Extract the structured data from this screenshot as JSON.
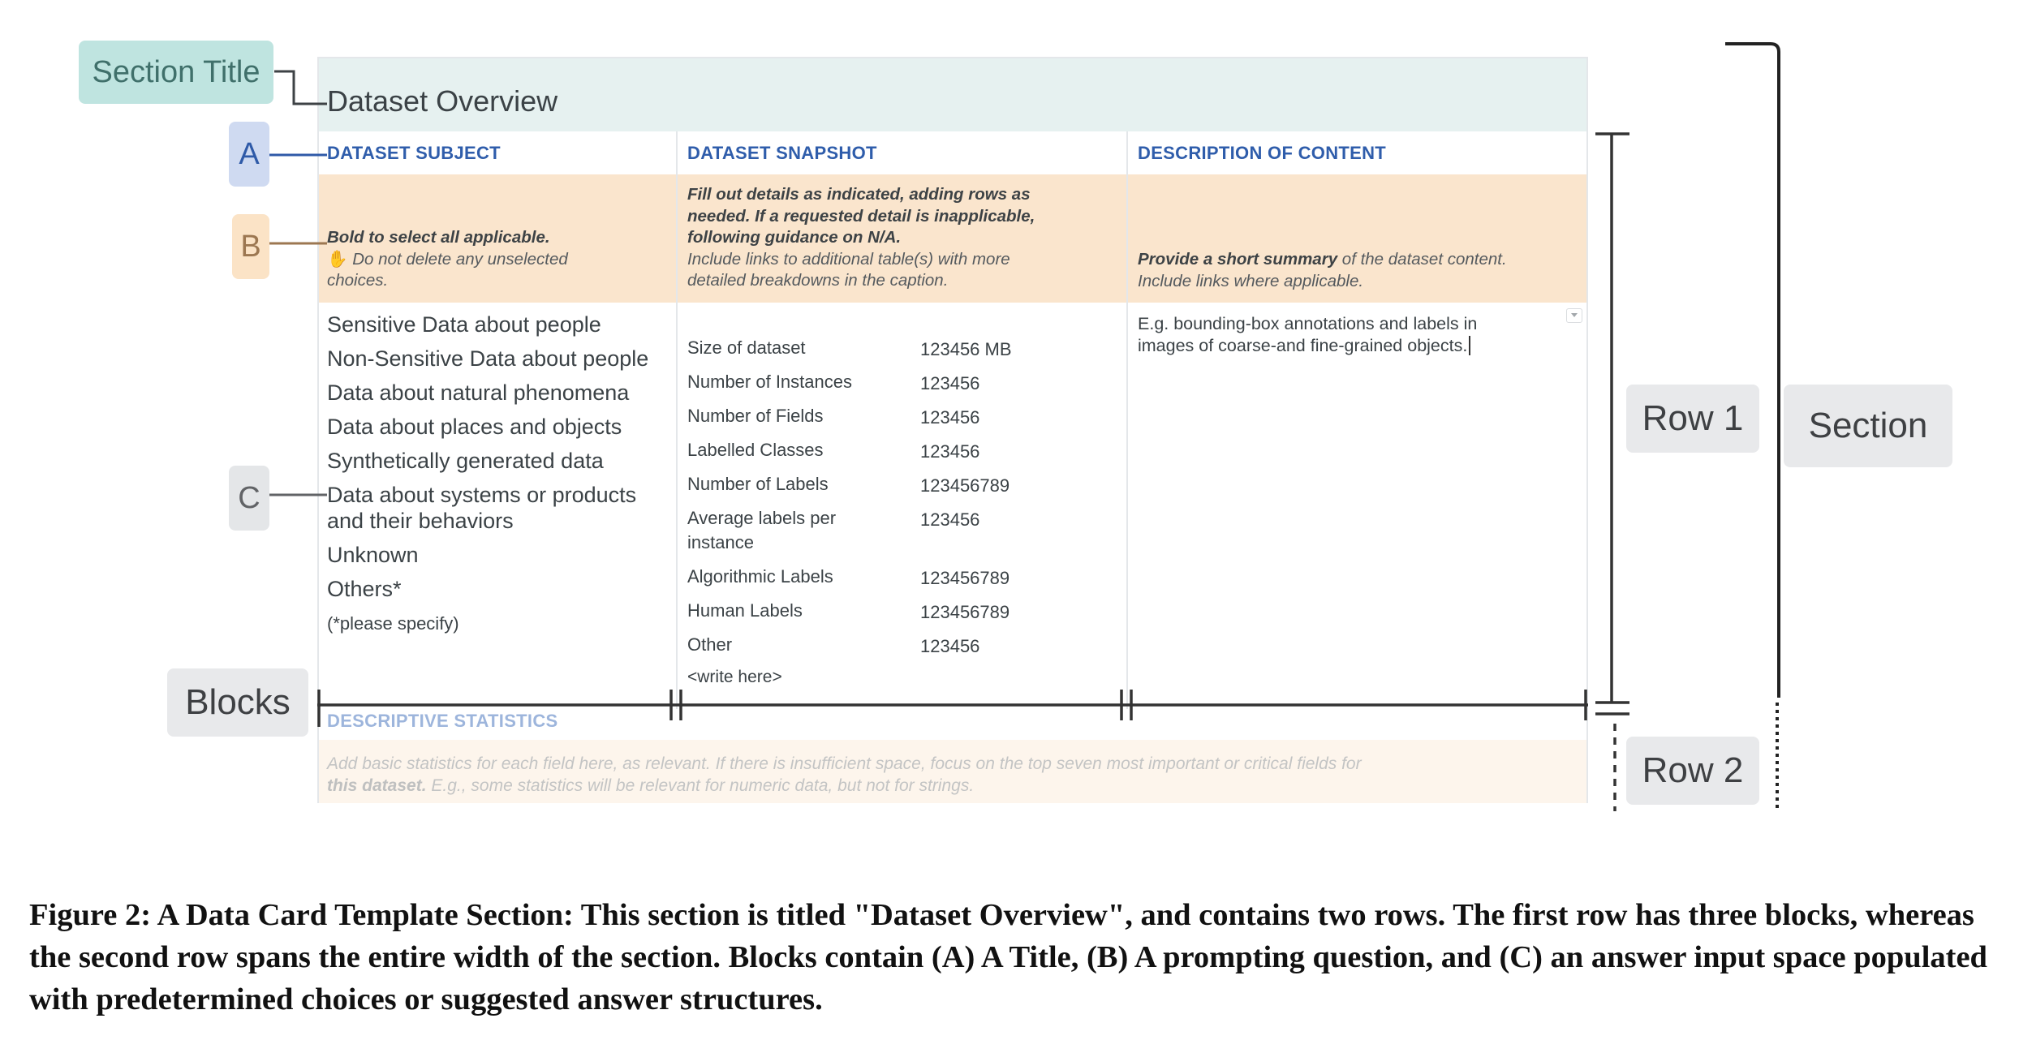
{
  "card": {
    "title": "Dataset Overview",
    "headers": [
      "DATASET SUBJECT",
      "DATASET SNAPSHOT",
      "DESCRIPTION OF CONTENT"
    ],
    "prompts": {
      "subject_bold": "Bold to select all applicable.",
      "subject_icon": "hand-icon",
      "subject_rest_1": "Do not delete any unselected",
      "subject_rest_2": "choices.",
      "snapshot_1": "Fill out details as indicated, adding rows as",
      "snapshot_2": "needed. If a requested detail is inapplicable,",
      "snapshot_3": "following guidance on N/A.",
      "snapshot_4": "Include links to additional table(s) with more",
      "snapshot_5": "detailed breakdowns in the caption.",
      "desc_bold": "Provide a short summary",
      "desc_rest": " of the dataset content.",
      "desc_2": "Include links where applicable."
    },
    "subject_choices": [
      "Sensitive Data about people",
      "Non-Sensitive Data about people",
      "Data about natural phenomena",
      "Data about places and objects",
      "Synthetically generated data",
      "Data about systems or products",
      "and their behaviors",
      "Unknown",
      "Others*"
    ],
    "subject_note": "(*please specify)",
    "snapshot_rows": [
      {
        "label": "Size of dataset",
        "value": "123456 MB"
      },
      {
        "label": "Number of Instances",
        "value": "123456"
      },
      {
        "label": "Number of Fields",
        "value": "123456"
      },
      {
        "label": "Labelled Classes",
        "value": "123456"
      },
      {
        "label": "Number of Labels",
        "value": "123456789"
      },
      {
        "label": "Average labels per",
        "value": "123456"
      },
      {
        "label": "instance",
        "value": ""
      },
      {
        "label": "Algorithmic Labels",
        "value": "123456789"
      },
      {
        "label": "Human Labels",
        "value": "123456789"
      },
      {
        "label": "Other",
        "value": "123456"
      }
    ],
    "snapshot_write": "<write here>",
    "description_1": "E.g. bounding-box annotations and labels in",
    "description_2": "images of coarse-and fine-grained objects.",
    "row2_title": "DESCRIPTIVE STATISTICS",
    "row2_prompt_1": "Add basic statistics for each field here, as relevant. If there is insufficient space, focus on the top seven most important or critical fields for",
    "row2_prompt_2_bold": "this dataset.",
    "row2_prompt_2_rest": " E.g., some statistics will be relevant for numeric data, but not for strings."
  },
  "callouts": {
    "section_title": "Section Title",
    "a": "A",
    "b": "B",
    "c": "C",
    "blocks": "Blocks",
    "row1": "Row 1",
    "section": "Section",
    "row2": "Row 2"
  },
  "colors": {
    "title_band": "#e6f1f0",
    "prompt_band": "#fae5cd",
    "header_blue": "#2f5dab"
  },
  "caption": "Figure 2: A Data Card Template Section: This section is titled \"Dataset Overview\", and contains two rows. The first row has three blocks, whereas the second row spans the entire width of the section. Blocks contain (A) A Title, (B) A prompting question, and (C) an answer input space populated with predetermined choices or suggested answer structures."
}
